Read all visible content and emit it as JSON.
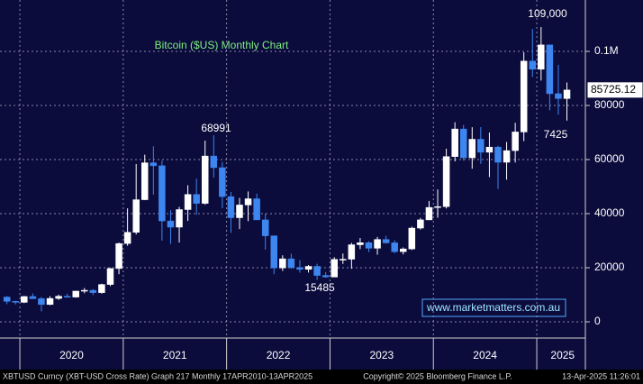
{
  "chart_data": {
    "type": "candlestick",
    "title": "Bitcoin ($US) Monthly Chart",
    "x": [
      2019.875,
      2019.9583,
      2020.0417,
      2020.125,
      2020.2083,
      2020.2917,
      2020.375,
      2020.4583,
      2020.5417,
      2020.625,
      2020.7083,
      2020.7917,
      2020.875,
      2020.9583,
      2021.0417,
      2021.125,
      2021.2083,
      2021.2917,
      2021.375,
      2021.4583,
      2021.5417,
      2021.625,
      2021.7083,
      2021.7917,
      2021.875,
      2021.9583,
      2022.0417,
      2022.125,
      2022.2083,
      2022.2917,
      2022.375,
      2022.4583,
      2022.5417,
      2022.625,
      2022.7083,
      2022.7917,
      2022.875,
      2022.9583,
      2023.0417,
      2023.125,
      2023.2083,
      2023.2917,
      2023.375,
      2023.4583,
      2023.5417,
      2023.625,
      2023.7083,
      2023.7917,
      2023.875,
      2023.9583,
      2024.0417,
      2024.125,
      2024.2083,
      2024.2917,
      2024.375,
      2024.4583,
      2024.5417,
      2024.625,
      2024.7083,
      2024.7917,
      2024.875,
      2024.9583,
      2025.0417,
      2025.125,
      2025.2083,
      2025.2917
    ],
    "open": [
      9150,
      7550,
      7200,
      9350,
      8550,
      6400,
      8650,
      9450,
      9150,
      11350,
      11650,
      10800,
      13800,
      19700,
      28950,
      33100,
      45150,
      58800,
      57700,
      37300,
      35000,
      41500,
      47100,
      43800,
      61300,
      57000,
      46300,
      38500,
      43200,
      45500,
      37700,
      31800,
      19900,
      23300,
      20050,
      19400,
      20500,
      17150,
      16550,
      23100,
      23150,
      28500,
      29250,
      27200,
      30450,
      29200,
      25950,
      26950,
      34650,
      37700,
      42300,
      42600,
      61100,
      71300,
      60650,
      67500,
      62700,
      64600,
      59000,
      63300,
      70200,
      96400,
      93400,
      102400,
      84350,
      82550
    ],
    "high": [
      9500,
      7750,
      9550,
      10500,
      9200,
      9450,
      10050,
      10400,
      11450,
      12500,
      12100,
      14100,
      19900,
      29300,
      41950,
      58350,
      61800,
      64900,
      59600,
      41300,
      42500,
      50500,
      52900,
      67000,
      68991,
      59100,
      48000,
      45800,
      48200,
      47400,
      40000,
      31900,
      24600,
      25200,
      22800,
      21000,
      21450,
      18400,
      23900,
      25250,
      29200,
      31000,
      29800,
      31400,
      31800,
      30200,
      27500,
      35200,
      38400,
      44700,
      48950,
      64000,
      73800,
      72800,
      71950,
      72000,
      70000,
      65100,
      66500,
      73600,
      99650,
      108300,
      109000,
      102500,
      95000,
      88500
    ],
    "low": [
      6500,
      6400,
      6900,
      8450,
      3850,
      6150,
      8100,
      8900,
      8950,
      10550,
      9900,
      10400,
      13200,
      17600,
      28100,
      32300,
      45000,
      47000,
      30000,
      28800,
      29300,
      37300,
      39600,
      43300,
      53300,
      42000,
      32900,
      34300,
      37200,
      37700,
      26700,
      17600,
      18800,
      19600,
      18150,
      18200,
      15485,
      16300,
      16500,
      21400,
      19600,
      26900,
      25800,
      24800,
      28900,
      25350,
      24900,
      26550,
      34100,
      37600,
      38500,
      41900,
      59300,
      59600,
      56600,
      58400,
      53500,
      49100,
      52550,
      58900,
      66800,
      90500,
      89200,
      78200,
      76600,
      74400
    ],
    "close": [
      7550,
      7200,
      9350,
      8550,
      6400,
      8650,
      9450,
      9150,
      11350,
      11650,
      10800,
      13800,
      19700,
      28950,
      33100,
      45150,
      58800,
      57700,
      37300,
      35000,
      41500,
      47100,
      43800,
      61300,
      57000,
      46300,
      38500,
      43200,
      45500,
      37700,
      31800,
      19900,
      23300,
      20050,
      19400,
      20500,
      17150,
      16550,
      23100,
      23150,
      28500,
      29250,
      27200,
      30450,
      29200,
      25950,
      26950,
      34650,
      37700,
      42300,
      42600,
      61100,
      71300,
      60650,
      67500,
      62700,
      64600,
      59000,
      63300,
      70200,
      96400,
      93400,
      102400,
      84350,
      82550,
      85725.12
    ],
    "up_color": "#ffffff",
    "down_color": "#3d86f0",
    "last_price": 85725.12,
    "xlim": [
      2019.808,
      2025.47
    ],
    "xticks": [
      {
        "value": 2020.5,
        "label": "2020"
      },
      {
        "value": 2021.5,
        "label": "2021"
      },
      {
        "value": 2022.5,
        "label": "2022"
      },
      {
        "value": 2023.5,
        "label": "2023"
      },
      {
        "value": 2024.5,
        "label": "2024"
      },
      {
        "value": 2025.25,
        "label": "2025"
      }
    ],
    "xgrid": [
      2020,
      2021,
      2022,
      2023,
      2024,
      2025
    ],
    "ylim": [
      -6000,
      119000
    ],
    "yticks": [
      0,
      20000,
      40000,
      60000,
      80000,
      {
        "value": 100000,
        "label": "0.1M"
      }
    ],
    "grid": true,
    "annotations": [
      "109,000",
      "68991",
      "15485",
      "7425"
    ],
    "watermark": "www.marketmatters.com.au",
    "footer": [
      "XBTUSD Curncy (XBT-USD Cross Rate) Graph 217  Monthly 17APR2010-13APR2025",
      "Copyright© 2025 Bloomberg Finance L.P.",
      "13-Apr-2025 11:26:01"
    ]
  }
}
